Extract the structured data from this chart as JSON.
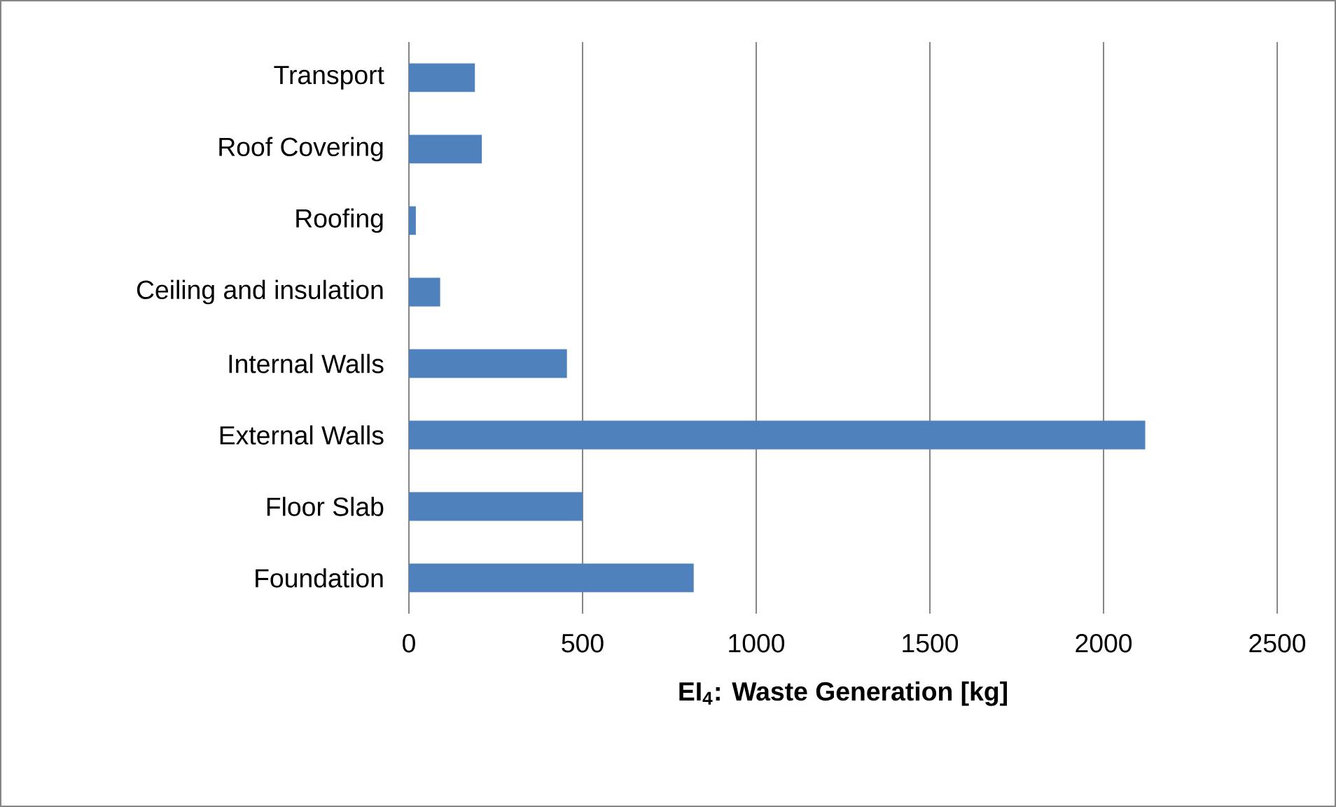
{
  "chart_data": {
    "type": "bar",
    "orientation": "horizontal",
    "categories": [
      "Transport",
      "Roof Covering",
      "Roofing",
      "Ceiling and insulation",
      "Internal Walls",
      "External Walls",
      "Floor Slab",
      "Foundation"
    ],
    "values": [
      190,
      210,
      20,
      90,
      455,
      2120,
      500,
      820
    ],
    "color": "#4f81bd",
    "xlabel": "EI$_{4}$: Waste Generation [kg]",
    "xlim": [
      0,
      2500
    ],
    "xticks": [
      0,
      500,
      1000,
      1500,
      2000,
      2500
    ],
    "grid": "x"
  }
}
